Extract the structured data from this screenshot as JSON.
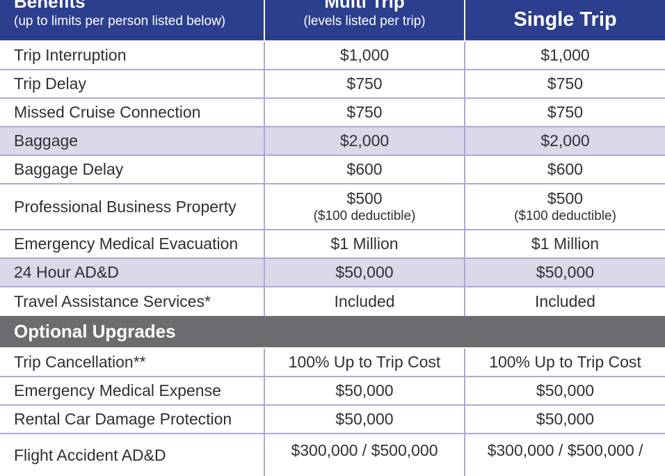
{
  "header": {
    "col1_title": "Benefits",
    "col1_note": "(up to limits per person listed below)",
    "col2_title": "Multi Trip",
    "col2_note": "(levels listed per trip)",
    "col3_title": "Single Trip"
  },
  "benefits": [
    {
      "name": "Trip Interruption",
      "multi": "$1,000",
      "single": "$1,000"
    },
    {
      "name": "Trip Delay",
      "multi": "$750",
      "single": "$750"
    },
    {
      "name": "Missed Cruise Connection",
      "multi": "$750",
      "single": "$750"
    },
    {
      "name": "Baggage",
      "multi": "$2,000",
      "single": "$2,000"
    },
    {
      "name": "Baggage Delay",
      "multi": "$600",
      "single": "$600"
    },
    {
      "name": "Professional Business Property",
      "multi": "$500",
      "multi_sub": "($100 deductible)",
      "single": "$500",
      "single_sub": "($100 deductible)"
    },
    {
      "name": "Emergency Medical Evacuation",
      "multi": "$1 Million",
      "single": "$1 Million"
    },
    {
      "name": "24 Hour AD&D",
      "multi": "$50,000",
      "single": "$50,000"
    },
    {
      "name": "Travel Assistance Services*",
      "multi": "Included",
      "single": "Included"
    }
  ],
  "upgrades_title": "Optional Upgrades",
  "upgrades": [
    {
      "name": "Trip Cancellation**",
      "multi": "100% Up to Trip Cost",
      "single": "100% Up to Trip Cost"
    },
    {
      "name": "Emergency Medical Expense",
      "multi": "$50,000",
      "single": "$50,000"
    },
    {
      "name": "Rental Car Damage Protection",
      "multi": "$50,000",
      "single": "$50,000"
    },
    {
      "name": "Flight Accident AD&D",
      "multi": "$300,000 / $500,000",
      "single": "$300,000 / $500,000 /"
    }
  ]
}
